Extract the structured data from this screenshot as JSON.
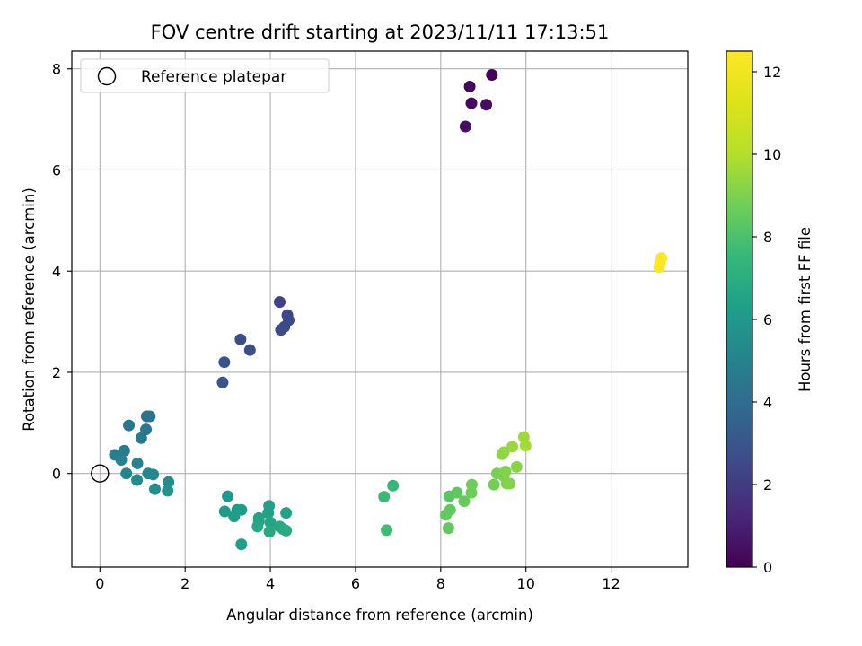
{
  "chart_data": {
    "type": "scatter",
    "title": "FOV centre drift starting at 2023/11/11 17:13:51",
    "xlabel": "Angular distance from reference (arcmin)",
    "ylabel": "Rotation from reference (arcmin)",
    "xlim": [
      -0.66,
      13.8
    ],
    "ylim": [
      -1.85,
      8.35
    ],
    "xticks": [
      0,
      2,
      4,
      6,
      8,
      10,
      12
    ],
    "yticks": [
      0,
      2,
      4,
      6,
      8
    ],
    "grid": true,
    "legend": {
      "position": "top-left",
      "entries": [
        "Reference platepar"
      ]
    },
    "reference_point": {
      "x": 0,
      "y": 0
    },
    "colorbar": {
      "label": "Hours from first FF file",
      "min": 0,
      "max": 12.5,
      "ticks": [
        0,
        2,
        4,
        6,
        8,
        10,
        12
      ],
      "colormap": "viridis"
    },
    "points": [
      {
        "x": 9.2,
        "y": 7.88,
        "c": 0.1
      },
      {
        "x": 8.68,
        "y": 7.65,
        "c": 0.2
      },
      {
        "x": 8.72,
        "y": 7.32,
        "c": 0.3
      },
      {
        "x": 9.07,
        "y": 7.29,
        "c": 0.4
      },
      {
        "x": 8.58,
        "y": 6.86,
        "c": 0.5
      },
      {
        "x": 4.22,
        "y": 3.39,
        "c": 2.3
      },
      {
        "x": 4.4,
        "y": 3.13,
        "c": 2.4
      },
      {
        "x": 4.43,
        "y": 3.03,
        "c": 2.5
      },
      {
        "x": 4.33,
        "y": 2.9,
        "c": 2.5
      },
      {
        "x": 4.25,
        "y": 2.84,
        "c": 2.6
      },
      {
        "x": 3.3,
        "y": 2.65,
        "c": 2.7
      },
      {
        "x": 3.52,
        "y": 2.44,
        "c": 2.8
      },
      {
        "x": 2.92,
        "y": 2.2,
        "c": 2.9
      },
      {
        "x": 2.88,
        "y": 1.8,
        "c": 3.0
      },
      {
        "x": 1.1,
        "y": 1.13,
        "c": 4.2
      },
      {
        "x": 1.17,
        "y": 1.13,
        "c": 4.3
      },
      {
        "x": 0.68,
        "y": 0.95,
        "c": 4.4
      },
      {
        "x": 1.08,
        "y": 0.87,
        "c": 4.5
      },
      {
        "x": 0.97,
        "y": 0.7,
        "c": 4.6
      },
      {
        "x": 0.57,
        "y": 0.45,
        "c": 4.7
      },
      {
        "x": 0.35,
        "y": 0.37,
        "c": 4.8
      },
      {
        "x": 0.5,
        "y": 0.27,
        "c": 4.9
      },
      {
        "x": 0.88,
        "y": 0.2,
        "c": 5.0
      },
      {
        "x": 0.62,
        "y": 0.0,
        "c": 5.1
      },
      {
        "x": 1.13,
        "y": 0.0,
        "c": 5.2
      },
      {
        "x": 1.25,
        "y": -0.02,
        "c": 5.3
      },
      {
        "x": 0.87,
        "y": -0.13,
        "c": 5.4
      },
      {
        "x": 1.61,
        "y": -0.17,
        "c": 5.5
      },
      {
        "x": 1.29,
        "y": -0.31,
        "c": 5.6
      },
      {
        "x": 1.59,
        "y": -0.34,
        "c": 5.7
      },
      {
        "x": 3.0,
        "y": -0.45,
        "c": 6.0
      },
      {
        "x": 2.93,
        "y": -0.75,
        "c": 6.1
      },
      {
        "x": 3.22,
        "y": -0.72,
        "c": 6.1
      },
      {
        "x": 3.32,
        "y": -0.72,
        "c": 6.2
      },
      {
        "x": 3.15,
        "y": -0.85,
        "c": 6.2
      },
      {
        "x": 3.32,
        "y": -1.4,
        "c": 6.3
      },
      {
        "x": 3.97,
        "y": -0.64,
        "c": 6.4
      },
      {
        "x": 3.95,
        "y": -0.78,
        "c": 6.4
      },
      {
        "x": 4.37,
        "y": -0.78,
        "c": 6.5
      },
      {
        "x": 3.73,
        "y": -0.88,
        "c": 6.5
      },
      {
        "x": 3.73,
        "y": -0.95,
        "c": 6.6
      },
      {
        "x": 4.0,
        "y": -0.97,
        "c": 6.6
      },
      {
        "x": 3.7,
        "y": -1.05,
        "c": 6.7
      },
      {
        "x": 4.22,
        "y": -1.05,
        "c": 6.7
      },
      {
        "x": 4.3,
        "y": -1.1,
        "c": 6.8
      },
      {
        "x": 3.98,
        "y": -1.15,
        "c": 6.8
      },
      {
        "x": 4.37,
        "y": -1.13,
        "c": 6.9
      },
      {
        "x": 6.88,
        "y": -0.24,
        "c": 7.5
      },
      {
        "x": 6.67,
        "y": -0.46,
        "c": 7.6
      },
      {
        "x": 6.73,
        "y": -1.12,
        "c": 7.7
      },
      {
        "x": 8.2,
        "y": -0.45,
        "c": 8.3
      },
      {
        "x": 8.38,
        "y": -0.38,
        "c": 8.4
      },
      {
        "x": 8.22,
        "y": -0.72,
        "c": 8.4
      },
      {
        "x": 8.12,
        "y": -0.82,
        "c": 8.5
      },
      {
        "x": 8.18,
        "y": -1.08,
        "c": 8.5
      },
      {
        "x": 8.55,
        "y": -0.55,
        "c": 8.6
      },
      {
        "x": 8.73,
        "y": -0.22,
        "c": 8.7
      },
      {
        "x": 8.72,
        "y": -0.38,
        "c": 8.7
      },
      {
        "x": 9.25,
        "y": -0.22,
        "c": 8.8
      },
      {
        "x": 9.32,
        "y": 0.0,
        "c": 8.9
      },
      {
        "x": 9.55,
        "y": -0.2,
        "c": 9.0
      },
      {
        "x": 9.48,
        "y": -0.05,
        "c": 9.0
      },
      {
        "x": 9.52,
        "y": 0.04,
        "c": 9.1
      },
      {
        "x": 9.62,
        "y": -0.2,
        "c": 9.1
      },
      {
        "x": 9.78,
        "y": 0.13,
        "c": 9.2
      },
      {
        "x": 9.44,
        "y": 0.38,
        "c": 9.3
      },
      {
        "x": 9.48,
        "y": 0.42,
        "c": 9.3
      },
      {
        "x": 9.68,
        "y": 0.53,
        "c": 9.5
      },
      {
        "x": 9.95,
        "y": 0.72,
        "c": 9.6
      },
      {
        "x": 9.99,
        "y": 0.55,
        "c": 9.7
      },
      {
        "x": 13.18,
        "y": 4.26,
        "c": 12.4
      },
      {
        "x": 13.15,
        "y": 4.16,
        "c": 12.4
      },
      {
        "x": 13.13,
        "y": 4.08,
        "c": 12.5
      }
    ]
  }
}
